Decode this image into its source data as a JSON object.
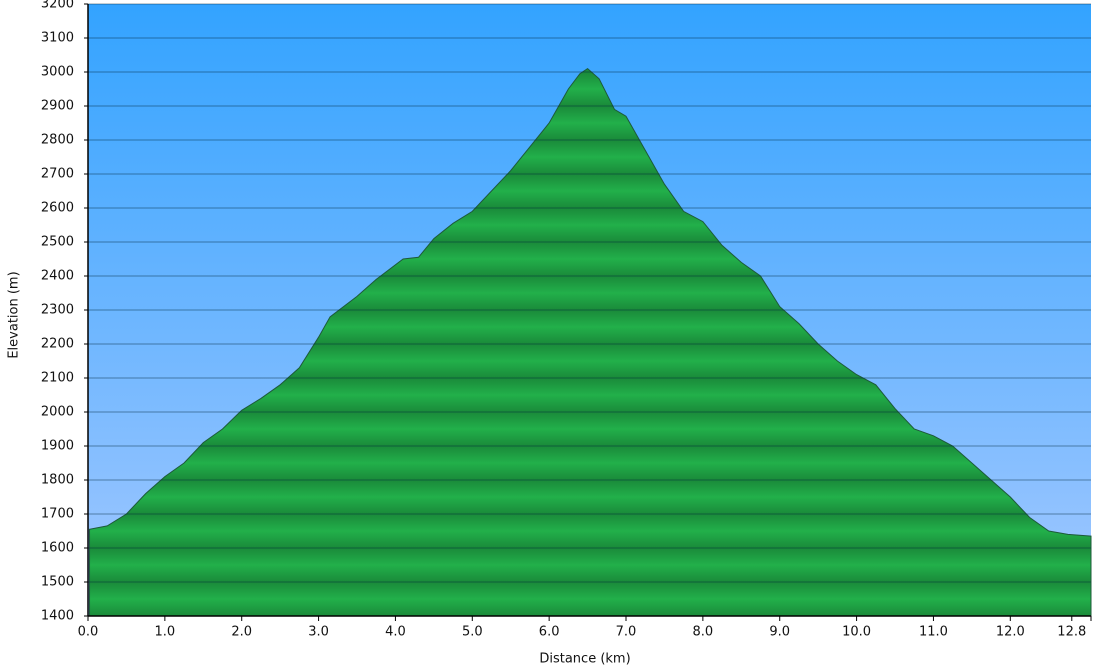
{
  "chart_data": {
    "type": "area",
    "xlabel": "Distance   (km)",
    "ylabel": "Elevation (m)",
    "x": [
      0.02,
      0.25,
      0.5,
      0.75,
      1.0,
      1.25,
      1.5,
      1.75,
      2.0,
      2.25,
      2.5,
      2.75,
      3.0,
      3.15,
      3.5,
      3.75,
      4.1,
      4.3,
      4.5,
      4.75,
      5.0,
      5.25,
      5.5,
      5.75,
      6.0,
      6.25,
      6.4,
      6.5,
      6.65,
      6.85,
      7.0,
      7.25,
      7.5,
      7.75,
      8.0,
      8.25,
      8.5,
      8.75,
      9.0,
      9.25,
      9.5,
      9.75,
      10.0,
      10.25,
      10.5,
      10.75,
      11.0,
      11.25,
      11.5,
      11.75,
      12.0,
      12.25,
      12.5,
      12.75,
      13.05
    ],
    "values": [
      1655,
      1665,
      1700,
      1760,
      1810,
      1850,
      1910,
      1950,
      2005,
      2040,
      2080,
      2130,
      2220,
      2280,
      2340,
      2390,
      2450,
      2455,
      2510,
      2555,
      2590,
      2650,
      2710,
      2780,
      2850,
      2950,
      2995,
      3010,
      2980,
      2890,
      2870,
      2770,
      2670,
      2590,
      2560,
      2490,
      2440,
      2400,
      2310,
      2260,
      2200,
      2150,
      2110,
      2080,
      2010,
      1950,
      1930,
      1900,
      1850,
      1800,
      1750,
      1690,
      1650,
      1640,
      1635
    ],
    "color": "#1fa743",
    "xlim": [
      0,
      13.05
    ],
    "ylim": [
      1400,
      3200
    ],
    "xticks": [
      {
        "value": 0,
        "label": "0.0"
      },
      {
        "value": 1,
        "label": "1.0"
      },
      {
        "value": 2,
        "label": "2.0"
      },
      {
        "value": 3,
        "label": "3.0"
      },
      {
        "value": 4,
        "label": "4.0"
      },
      {
        "value": 5,
        "label": "5.0"
      },
      {
        "value": 6,
        "label": "6.0"
      },
      {
        "value": 7,
        "label": "7.0"
      },
      {
        "value": 8,
        "label": "8.0"
      },
      {
        "value": 9,
        "label": "9.0"
      },
      {
        "value": 10,
        "label": "10.0"
      },
      {
        "value": 11,
        "label": "11.0"
      },
      {
        "value": 12,
        "label": "12.0"
      },
      12.8
    ],
    "yticks": [
      1400,
      1500,
      1600,
      1700,
      1800,
      1900,
      2000,
      2100,
      2200,
      2300,
      2400,
      2500,
      2600,
      2700,
      2800,
      2900,
      3000,
      3100,
      3200
    ],
    "grid": true
  }
}
